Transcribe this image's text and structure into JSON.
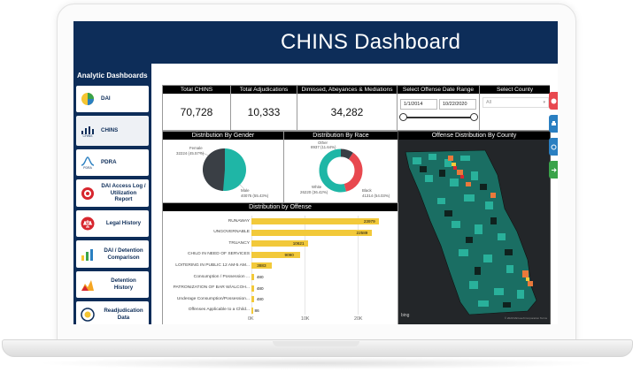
{
  "header": {
    "title": "CHINS Dashboard"
  },
  "sidebar": {
    "title": "Analytic Dashboards",
    "items": [
      {
        "label": "DAI",
        "icon": "dai-icon"
      },
      {
        "label": "CHINS",
        "icon": "chins-icon",
        "sub": "CHINS"
      },
      {
        "label": "PDRA",
        "icon": "pdra-icon",
        "sub": "PDRA"
      },
      {
        "label": "DAI Access Log / Utilization Report",
        "icon": "access-log-icon"
      },
      {
        "label": "Legal History",
        "icon": "legal-history-icon"
      },
      {
        "label": "DAI / Detention Comparison",
        "icon": "comparison-icon"
      },
      {
        "label": "Detention History",
        "icon": "detention-history-icon"
      },
      {
        "label": "Readjudication Data",
        "icon": "readjudication-icon"
      }
    ]
  },
  "kpis": [
    {
      "label": "Total CHINS",
      "value": "70,728"
    },
    {
      "label": "Total Adjudications",
      "value": "10,333"
    },
    {
      "label": "Dimissed, Abeyances & Mediations",
      "value": "34,282"
    }
  ],
  "filters": {
    "date_label": "Select Offense Date Range",
    "date_start": "1/1/2014",
    "date_end": "10/22/2020",
    "county_label": "Select County",
    "county_value": "All"
  },
  "gender": {
    "title": "Distribution By Gender",
    "female_label": "Female",
    "female_value": "32224 (45.57%)",
    "male_label": "Male",
    "male_value": "40075 (55.43%)"
  },
  "race": {
    "title": "Distribution By Race",
    "other_label": "Other",
    "other_value": "8937 (11.64%)",
    "white_label": "White",
    "white_value": "26220 (36.42%)",
    "black_label": "Black",
    "black_value": "41314 (54.03%)"
  },
  "map": {
    "title": "Offense Distribution By County",
    "attribution": "bing",
    "copyright": "© 2020 Microsoft Corporation Terms"
  },
  "chart_data": {
    "type": "bar",
    "orientation": "horizontal",
    "title": "Distribution by Offense",
    "categories": [
      "RUNAWAY",
      "UNGOVERNABLE",
      "TRUANCY",
      "CHILD IN NEED OF SERVICES",
      "LOITERING IN PUBLIC 12 AM-5 AM...",
      "Consumption / Possession ...",
      "PATRONIZATION OF BAR W/ALCOH...",
      "Underage Consumption/Possession...",
      "Offenses Applicable to a Child..."
    ],
    "values": [
      23979,
      22589,
      10621,
      9090,
      3883,
      480,
      480,
      480,
      86
    ],
    "value_labels": [
      "23979",
      "22589",
      "10621",
      "9090",
      "3883",
      "480",
      "480",
      "480",
      "86"
    ],
    "xlim": [
      0,
      25000
    ],
    "xticks": [
      "0K",
      "10K",
      "20K"
    ],
    "bar_color": "#f2c93a"
  },
  "colors": {
    "navy": "#0d2d59",
    "teal": "#1fb6a6",
    "dark": "#3a3f45",
    "red": "#e8484f",
    "bar": "#f2c93a"
  }
}
